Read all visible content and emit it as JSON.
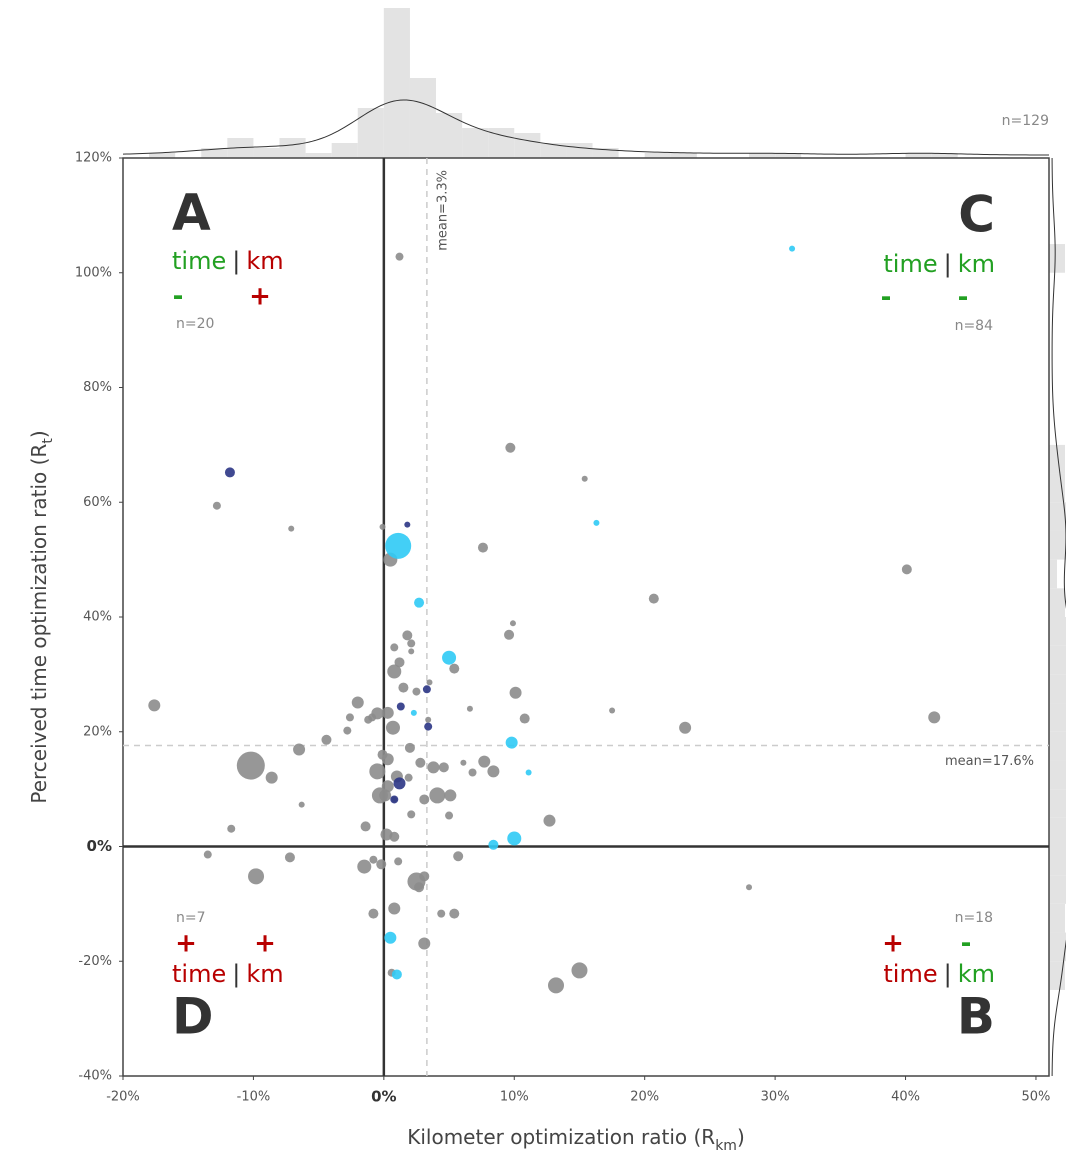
{
  "chart_data": {
    "type": "scatter",
    "x_label": [
      "Kilometer optimization ratio (R",
      "km",
      ")"
    ],
    "y_label": [
      "Perceived time optimization ratio (R",
      "t",
      ")"
    ],
    "xlim": [
      -20,
      51
    ],
    "ylim": [
      -40,
      120
    ],
    "xticks": [
      {
        "value": -20,
        "label": "-20%"
      },
      {
        "value": -10,
        "label": "-10%"
      },
      {
        "value": 0,
        "label": "0%"
      },
      {
        "value": 10,
        "label": "10%"
      },
      {
        "value": 20,
        "label": "20%"
      },
      {
        "value": 30,
        "label": "30%"
      },
      {
        "value": 40,
        "label": "40%"
      },
      {
        "value": 50,
        "label": "50%"
      }
    ],
    "yticks": [
      {
        "value": -40,
        "label": "-40%"
      },
      {
        "value": -20,
        "label": "-20%"
      },
      {
        "value": 0,
        "label": "0%"
      },
      {
        "value": 20,
        "label": "20%"
      },
      {
        "value": 40,
        "label": "40%"
      },
      {
        "value": 60,
        "label": "60%"
      },
      {
        "value": 80,
        "label": "80%"
      },
      {
        "value": 100,
        "label": "100%"
      },
      {
        "value": 120,
        "label": "120%"
      }
    ],
    "zero_lines": true,
    "series": [
      {
        "color": "#8c8c8c",
        "x": [
          1.2,
          9.7,
          15.4,
          -12.8,
          -7.1,
          -0.1,
          0.5,
          7.6,
          40.1,
          20.7,
          9.9,
          9.6,
          1.8,
          2.1,
          0.8,
          2.1,
          5.4,
          1.2,
          0.8,
          3.5,
          1.5,
          2.5,
          10.1,
          -17.6,
          -2,
          6.6,
          17.5,
          42.2,
          10.8,
          -2.6,
          -0.9,
          -0.5,
          0.3,
          -1.2,
          3.4,
          23.1,
          -2.8,
          0.7,
          -4.4,
          -6.5,
          2,
          -0.1,
          0.3,
          -10.2,
          -8.6,
          7.7,
          6.1,
          2.8,
          3.8,
          4.6,
          -0.5,
          8.4,
          6.8,
          1,
          1.9,
          0.3,
          0.1,
          -0.3,
          4.1,
          5.1,
          3.1,
          0.8,
          -6.3,
          2.1,
          5,
          12.7,
          -11.7,
          -1.4,
          0.2,
          0.8,
          -13.5,
          -7.2,
          5.7,
          -0.8,
          -0.2,
          1.1,
          -1.5,
          -9.8,
          3.1,
          2.5,
          2.7,
          28,
          -0.8,
          0.8,
          4.4,
          5.4,
          3.1,
          0.6,
          15,
          13.2
        ],
        "y": [
          102.8,
          69.5,
          64.1,
          59.4,
          55.4,
          55.7,
          50,
          52.1,
          48.3,
          43.2,
          38.9,
          36.9,
          36.8,
          35.4,
          34.7,
          34,
          31,
          32.1,
          30.5,
          28.6,
          27.7,
          27,
          26.8,
          24.6,
          25.1,
          24,
          23.7,
          22.5,
          22.3,
          22.5,
          22.5,
          23.2,
          23.3,
          22.1,
          22.1,
          20.7,
          20.2,
          20.7,
          18.6,
          16.9,
          17.2,
          16,
          15.2,
          14.1,
          12,
          14.8,
          14.6,
          14.6,
          13.8,
          13.8,
          13.1,
          13.1,
          12.9,
          12.2,
          12,
          10.5,
          8.9,
          8.9,
          8.9,
          8.9,
          8.2,
          8.2,
          7.3,
          5.6,
          5.4,
          4.5,
          3.1,
          3.5,
          2.1,
          1.7,
          -1.4,
          -1.9,
          -1.7,
          -2.3,
          -3.1,
          -2.6,
          -3.5,
          -5.2,
          -5.2,
          -6.1,
          -7.1,
          -7.1,
          -11.7,
          -10.8,
          -11.7,
          -11.7,
          -16.9,
          -22,
          -21.6,
          -24.2
        ],
        "sizes": [
          4,
          5,
          3,
          4,
          3,
          3,
          7,
          5,
          5,
          5,
          3,
          5,
          5,
          4,
          4,
          3,
          5,
          5,
          7,
          3,
          5,
          4,
          6,
          6,
          6,
          3,
          3,
          6,
          5,
          4,
          4,
          6,
          6,
          4,
          3,
          6,
          4,
          7,
          5,
          6,
          5,
          5,
          6,
          14,
          6,
          6,
          3,
          5,
          6,
          5,
          8,
          6,
          4,
          6,
          4,
          6,
          6,
          8,
          8,
          6,
          5,
          3,
          3,
          4,
          4,
          6,
          4,
          5,
          6,
          5,
          4,
          5,
          5,
          4,
          5,
          4,
          7,
          8,
          5,
          9,
          5,
          3,
          5,
          6,
          4,
          5,
          6,
          4,
          8,
          8
        ]
      },
      {
        "color": "#2fcaf5",
        "x": [
          31.3,
          16.3,
          1.1,
          2.7,
          5,
          2.3,
          9.8,
          11.1,
          10,
          8.4,
          0.5,
          1
        ],
        "y": [
          104.2,
          56.4,
          52.4,
          42.5,
          32.9,
          23.3,
          18.1,
          12.9,
          1.4,
          0.3,
          -15.9,
          -22.3
        ],
        "sizes": [
          3,
          3,
          13,
          5,
          7,
          3,
          6,
          3,
          7,
          5,
          6,
          5
        ]
      },
      {
        "color": "#2b3585",
        "x": [
          -11.8,
          1.8,
          1.3,
          3.3,
          3.4,
          1.2,
          0.8
        ],
        "y": [
          65.2,
          56.1,
          24.4,
          27.4,
          20.9,
          11,
          8.2
        ],
        "sizes": [
          5,
          3,
          4,
          4,
          4,
          6,
          4
        ]
      }
    ],
    "mean_x": {
      "value": 3.3,
      "label": "mean=3.3%"
    },
    "mean_y": {
      "value": 17.6,
      "label": "mean=17.6%"
    },
    "n_total": "n=129",
    "separator": "|",
    "quadrants": [
      {
        "letter": "A",
        "time": "time",
        "km": "km",
        "time_sign": "-",
        "km_sign": "+",
        "time_color": "#22a022",
        "km_color": "#b80000",
        "n": "n=20"
      },
      {
        "letter": "C",
        "time": "time",
        "km": "km",
        "time_sign": "-",
        "km_sign": "-",
        "time_color": "#22a022",
        "km_color": "#22a022",
        "n": "n=84"
      },
      {
        "letter": "D",
        "time": "time",
        "km": "km",
        "time_sign": "+",
        "km_sign": "+",
        "time_color": "#b80000",
        "km_color": "#b80000",
        "n": "n=7"
      },
      {
        "letter": "B",
        "time": "time",
        "km": "km",
        "time_sign": "+",
        "km_sign": "-",
        "time_color": "#b80000",
        "km_color": "#22a022",
        "n": "n=18"
      }
    ],
    "hist_color": "#e3e3e3",
    "x_hist": {
      "bins": [
        -20,
        -18,
        -16,
        -14,
        -12,
        -10,
        -8,
        -6,
        -4,
        -2,
        0,
        2,
        4,
        6,
        8,
        10,
        12,
        14,
        16,
        18,
        20,
        22,
        24,
        26,
        28,
        30,
        32,
        34,
        36,
        38,
        40,
        42,
        44,
        46,
        48,
        50
      ],
      "counts": [
        0,
        1,
        0,
        2,
        4,
        2,
        4,
        1,
        3,
        10,
        30,
        16,
        9,
        6,
        6,
        5,
        3,
        3,
        2,
        0,
        1,
        1,
        0,
        0,
        1,
        1,
        0,
        0,
        0,
        0,
        1,
        1,
        0,
        0,
        0
      ]
    },
    "y_hist": {
      "bins": [
        -40,
        -35,
        -30,
        -25,
        -20,
        -15,
        -10,
        -5,
        0,
        5,
        10,
        15,
        20,
        25,
        30,
        35,
        40,
        45,
        50,
        55,
        60,
        65,
        70,
        75,
        80,
        85,
        90,
        95,
        100,
        105,
        110,
        115,
        120
      ],
      "counts": [
        0,
        0,
        0,
        2,
        3,
        2,
        4,
        10,
        10,
        12,
        16,
        10,
        17,
        8,
        5,
        6,
        2,
        1,
        5,
        4,
        2,
        2,
        0,
        0,
        0,
        0,
        0,
        0,
        2,
        0,
        0,
        0
      ]
    }
  }
}
